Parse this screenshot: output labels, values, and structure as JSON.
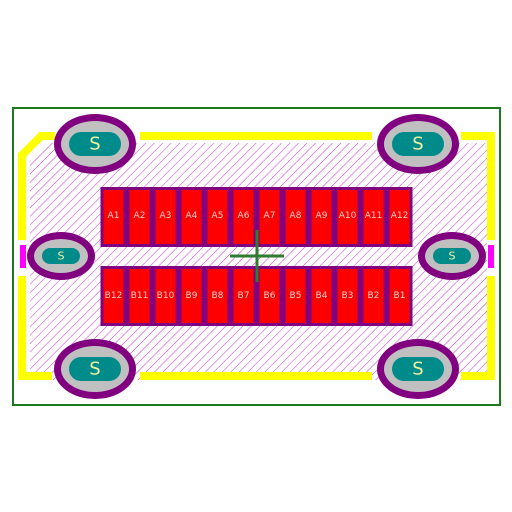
{
  "colors": {
    "background": "#ffffff",
    "courtyard": "#1f7a1f",
    "silkscreen": "#ffff00",
    "hatch": "#cc33cc",
    "pad_outline": "#800080",
    "pad_fill": "#ff0000",
    "shield_ring": "#800080",
    "shield_mid": "#c0c0c0",
    "shield_core": "#008b8b",
    "crosshair": "#2e7d2e",
    "side_tab": "#ff00ff"
  },
  "pads_top": [
    {
      "label": "A1"
    },
    {
      "label": "A2"
    },
    {
      "label": "A3"
    },
    {
      "label": "A4"
    },
    {
      "label": "A5"
    },
    {
      "label": "A6"
    },
    {
      "label": "A7"
    },
    {
      "label": "A8"
    },
    {
      "label": "A9"
    },
    {
      "label": "A10"
    },
    {
      "label": "A11"
    },
    {
      "label": "A12"
    }
  ],
  "pads_bottom": [
    {
      "label": "B12"
    },
    {
      "label": "B11"
    },
    {
      "label": "B10"
    },
    {
      "label": "B9"
    },
    {
      "label": "B8"
    },
    {
      "label": "B7"
    },
    {
      "label": "B6"
    },
    {
      "label": "B5"
    },
    {
      "label": "B4"
    },
    {
      "label": "B3"
    },
    {
      "label": "B2"
    },
    {
      "label": "B1"
    }
  ],
  "shield_pads": {
    "large_label": "S",
    "small_label": "S",
    "large_count": 4,
    "small_count": 2
  }
}
